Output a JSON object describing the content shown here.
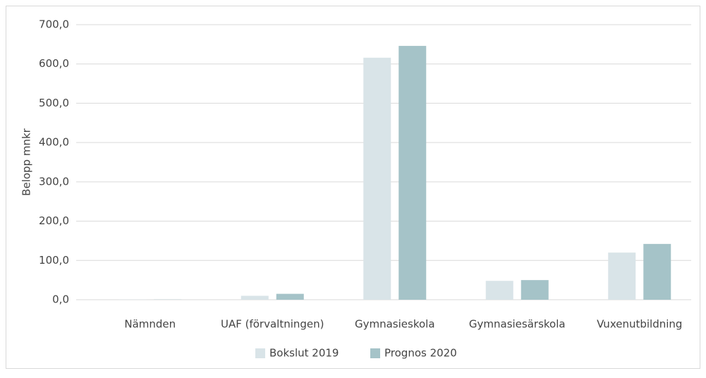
{
  "chart_data": {
    "type": "bar",
    "y_label": "Belopp mnkr",
    "categories": [
      "Nämnden",
      "UAF (förvaltningen)",
      "Gymnasieskola",
      "Gymnasiesärskola",
      "Vuxenutbildning"
    ],
    "series": [
      {
        "name": "Bokslut 2019",
        "color": "#d9e4e8",
        "values": [
          0.5,
          10,
          616,
          48,
          120
        ]
      },
      {
        "name": "Prognos 2020",
        "color": "#a5c3c8",
        "values": [
          0.5,
          15,
          646,
          50,
          142
        ]
      }
    ],
    "ylim": [
      0,
      700
    ],
    "yticks": [
      {
        "value": 0,
        "label": "0,0"
      },
      {
        "value": 100,
        "label": "100,0"
      },
      {
        "value": 200,
        "label": "200,0"
      },
      {
        "value": 300,
        "label": "300,0"
      },
      {
        "value": 400,
        "label": "400,0"
      },
      {
        "value": 500,
        "label": "500,0"
      },
      {
        "value": 600,
        "label": "600,0"
      },
      {
        "value": 700,
        "label": "700,0"
      }
    ],
    "grid": true,
    "legend": "bottom"
  }
}
